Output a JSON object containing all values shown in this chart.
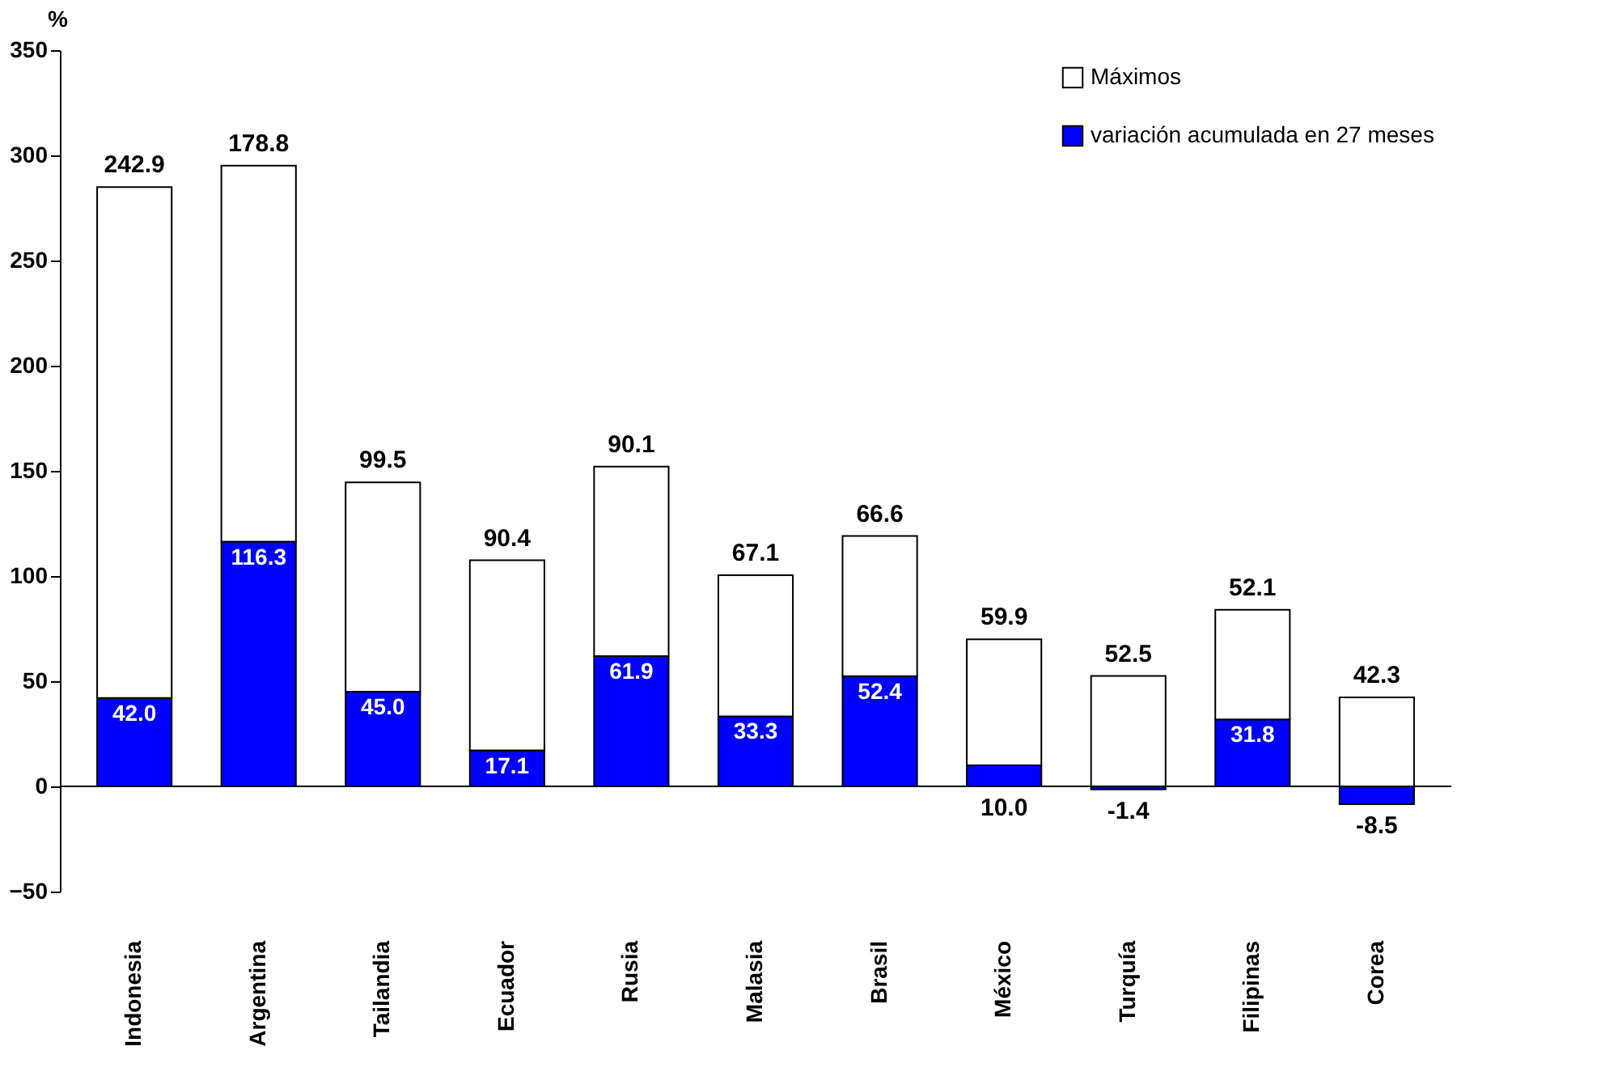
{
  "chart_data": {
    "type": "bar",
    "stacked": true,
    "categories": [
      "Indonesia",
      "Argentina",
      "Tailandia",
      "Ecuador",
      "Rusia",
      "Malasia",
      "Brasil",
      "México",
      "Turquía",
      "Filipinas",
      "Corea"
    ],
    "series": [
      {
        "name": "variación acumulada en 27 meses",
        "color": "#0000ff",
        "values": [
          42.0,
          116.3,
          45.0,
          17.1,
          61.9,
          33.3,
          52.4,
          10.0,
          -1.4,
          31.8,
          -8.5
        ],
        "value_labels": [
          "42.0",
          "116.3",
          "45.0",
          "17.1",
          "61.9",
          "33.3",
          "52.4",
          "10.0",
          "-1.4",
          "31.8",
          "-8.5"
        ]
      },
      {
        "name": "Máximos",
        "color": "#ffffff",
        "values": [
          242.9,
          178.8,
          99.5,
          90.4,
          90.1,
          67.1,
          66.6,
          59.9,
          52.5,
          52.1,
          42.3
        ],
        "value_labels": [
          "242.9",
          "178.8",
          "99.5",
          "90.4",
          "90.1",
          "67.1",
          "66.6",
          "59.9",
          "52.5",
          "52.1",
          "42.3"
        ]
      }
    ],
    "ylabel": "%",
    "ylim": [
      -50,
      350
    ],
    "yticks": [
      -50,
      0,
      50,
      100,
      150,
      200,
      250,
      300,
      350
    ],
    "legend": "top right"
  }
}
